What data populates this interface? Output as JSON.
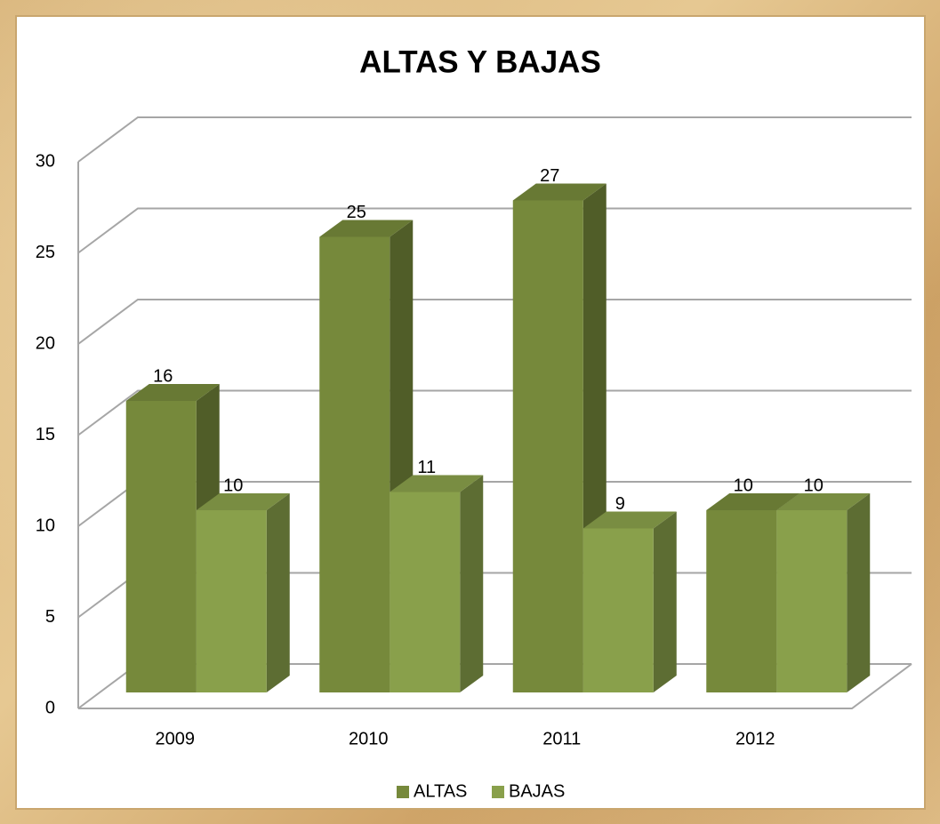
{
  "chart_data": {
    "type": "bar",
    "title": "ALTAS Y BAJAS",
    "categories": [
      "2009",
      "2010",
      "2011",
      "2012"
    ],
    "series": [
      {
        "name": "ALTAS",
        "color": "#76893b",
        "values": [
          16,
          25,
          27,
          10
        ]
      },
      {
        "name": "BAJAS",
        "color": "#89a04b",
        "values": [
          10,
          11,
          9,
          10
        ]
      }
    ],
    "ylim": [
      0,
      30
    ],
    "yticks": [
      0,
      5,
      10,
      15,
      20,
      25,
      30
    ],
    "grid": true,
    "legend": "bottom"
  }
}
